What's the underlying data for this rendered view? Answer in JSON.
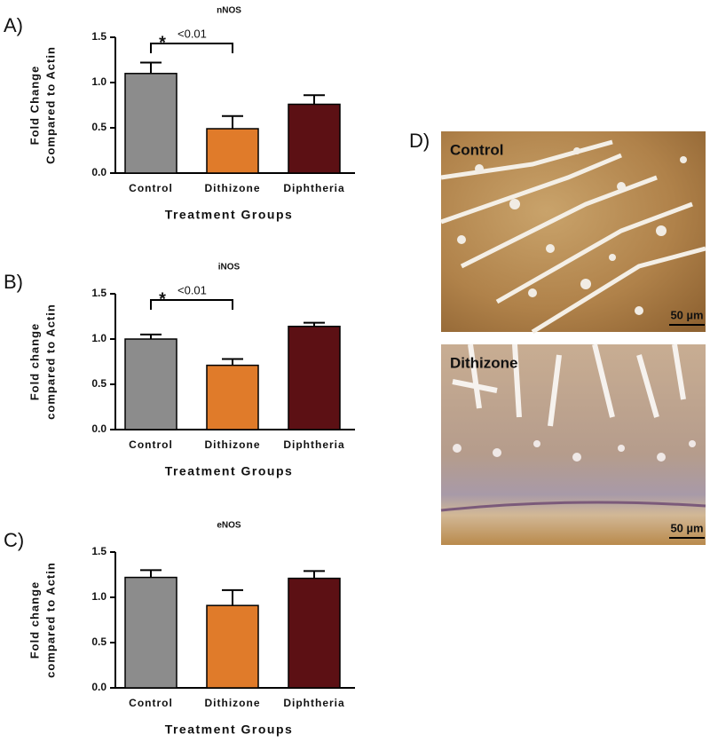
{
  "chart_data": [
    {
      "type": "bar",
      "panel": "A)",
      "title": "nNOS",
      "ylabel": [
        "Fold Change",
        "Compared to Actin"
      ],
      "xlabel": "Treatment Groups",
      "categories": [
        "Control",
        "Dithizone",
        "Diphtheria"
      ],
      "values": [
        1.1,
        0.49,
        0.76
      ],
      "errors": [
        0.12,
        0.14,
        0.1
      ],
      "colors": [
        "#8c8c8c",
        "#e07b2a",
        "#5c1014"
      ],
      "ylim": [
        0,
        1.5
      ],
      "yticks": [
        {
          "value": 0,
          "label": "0.0"
        },
        0.5,
        {
          "value": 1,
          "label": "1.0"
        },
        1.5
      ],
      "annotation": {
        "marker": "*",
        "text": "<0.01"
      }
    },
    {
      "type": "bar",
      "panel": "B)",
      "title": "iNOS",
      "ylabel": [
        "Fold change",
        "compared to Actin"
      ],
      "xlabel": "Treatment Groups",
      "categories": [
        "Control",
        "Dithizone",
        "Diphtheria"
      ],
      "values": [
        1.0,
        0.71,
        1.14
      ],
      "errors": [
        0.05,
        0.07,
        0.04
      ],
      "colors": [
        "#8c8c8c",
        "#e07b2a",
        "#5c1014"
      ],
      "ylim": [
        0,
        1.5
      ],
      "yticks": [
        {
          "value": 0,
          "label": "0.0"
        },
        0.5,
        {
          "value": 1,
          "label": "1.0"
        },
        1.5
      ],
      "annotation": {
        "marker": "*",
        "text": "<0.01"
      }
    },
    {
      "type": "bar",
      "panel": "C)",
      "title": "eNOS",
      "ylabel": [
        "Fold change",
        "compared to Actin"
      ],
      "xlabel": "Treatment Groups",
      "categories": [
        "Control",
        "Dithizone",
        "Diphtheria"
      ],
      "values": [
        1.22,
        0.91,
        1.21
      ],
      "errors": [
        0.08,
        0.17,
        0.08
      ],
      "colors": [
        "#8c8c8c",
        "#e07b2a",
        "#5c1014"
      ],
      "ylim": [
        0,
        1.5
      ],
      "yticks": [
        {
          "value": 0,
          "label": "0.0"
        },
        0.5,
        {
          "value": 1,
          "label": "1.0"
        },
        1.5
      ]
    }
  ],
  "micrographs": {
    "panel": "D)",
    "images": [
      {
        "label": "Control",
        "scale": "50 µm"
      },
      {
        "label": "Dithizone",
        "scale": "50 µm"
      }
    ]
  }
}
